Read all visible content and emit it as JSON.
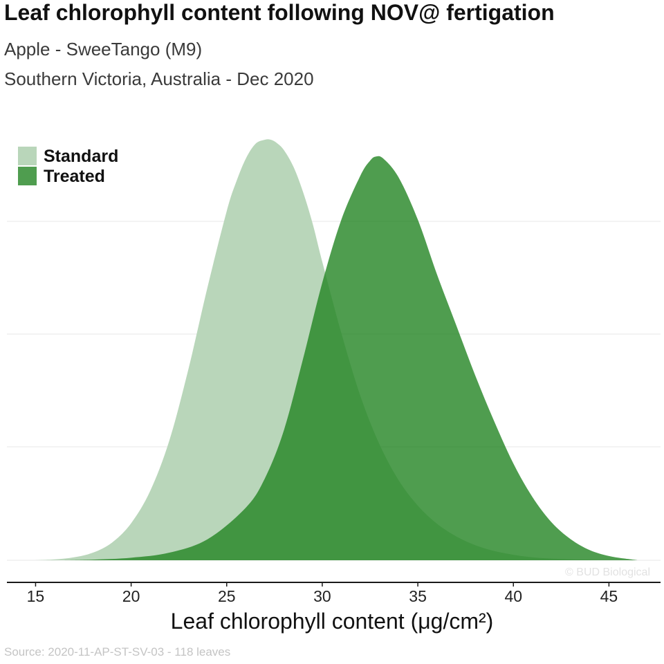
{
  "header": {
    "title": "Leaf chlorophyll content following NOV@ fertigation",
    "subtitle_1": "Apple - SweeTango (M9)",
    "subtitle_2": "Southern Victoria, Australia - Dec 2020"
  },
  "footer": {
    "source": "Source: 2020-11-AP-ST-SV-03 - 118 leaves",
    "watermark": "© BUD Biological"
  },
  "chart_data": {
    "type": "area",
    "title": "Leaf chlorophyll content following NOV@ fertigation",
    "xlabel": "Leaf chlorophyll content (μg/cm²)",
    "ylabel": "",
    "xlim": [
      13.5,
      47.7
    ],
    "ylim": [
      0,
      1.0
    ],
    "xticks": [
      15,
      20,
      25,
      30,
      35,
      40,
      45
    ],
    "x_tick_labels": [
      "15",
      "20",
      "25",
      "30",
      "35",
      "40",
      "45"
    ],
    "grid": true,
    "legend_position": "top-left",
    "series": [
      {
        "name": "Standard",
        "color": "#b9d6ba",
        "opacity": 1.0,
        "x": [
          15.0,
          16.0,
          17.0,
          18.0,
          19.0,
          20.0,
          21.0,
          22.0,
          23.0,
          24.0,
          25.0,
          25.5,
          26.0,
          26.5,
          27.0,
          27.3,
          27.6,
          28.0,
          28.5,
          29.0,
          29.5,
          30.0,
          31.0,
          32.0,
          33.0,
          34.0,
          35.0,
          36.0,
          37.0,
          38.0,
          39.0,
          40.0,
          41.0,
          42.0,
          43.0,
          44.0,
          44.5
        ],
        "y": [
          0.0,
          0.002,
          0.007,
          0.018,
          0.042,
          0.088,
          0.165,
          0.285,
          0.455,
          0.65,
          0.83,
          0.9,
          0.955,
          0.99,
          1.0,
          1.0,
          0.993,
          0.975,
          0.935,
          0.875,
          0.8,
          0.71,
          0.54,
          0.39,
          0.275,
          0.19,
          0.13,
          0.087,
          0.057,
          0.036,
          0.022,
          0.013,
          0.007,
          0.004,
          0.002,
          0.001,
          0.0
        ]
      },
      {
        "name": "Treated",
        "color": "#238423",
        "opacity": 0.8,
        "x": [
          16.5,
          18.0,
          20.0,
          22.0,
          24.0,
          26.0,
          27.0,
          28.0,
          29.0,
          30.0,
          31.0,
          32.0,
          32.5,
          32.8,
          33.2,
          34.0,
          35.0,
          36.0,
          37.0,
          38.0,
          39.0,
          40.0,
          41.0,
          42.0,
          43.0,
          44.0,
          45.0,
          46.0,
          46.5
        ],
        "y": [
          0.0,
          0.0015,
          0.006,
          0.018,
          0.05,
          0.125,
          0.195,
          0.31,
          0.48,
          0.66,
          0.81,
          0.915,
          0.95,
          0.96,
          0.955,
          0.91,
          0.81,
          0.68,
          0.56,
          0.44,
          0.33,
          0.23,
          0.15,
          0.09,
          0.05,
          0.024,
          0.01,
          0.003,
          0.0
        ]
      }
    ]
  }
}
